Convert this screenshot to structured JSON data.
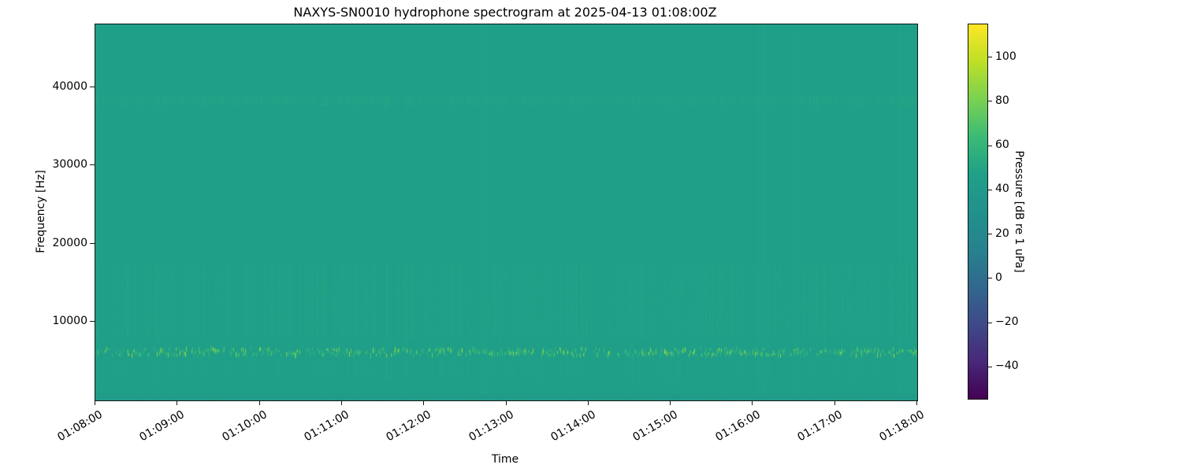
{
  "chart_data": {
    "type": "heatmap",
    "subtype": "spectrogram",
    "title": "NAXYS-SN0010 hydrophone spectrogram at 2025-04-13 01:08:00Z",
    "xlabel": "Time",
    "ylabel": "Frequency [Hz]",
    "x_tick_labels": [
      "01:08:00",
      "01:09:00",
      "01:10:00",
      "01:11:00",
      "01:12:00",
      "01:13:00",
      "01:14:00",
      "01:15:00",
      "01:16:00",
      "01:17:00",
      "01:18:00"
    ],
    "x_range": {
      "start": "01:08:00",
      "end": "01:18:00",
      "duration_minutes": 10
    },
    "y_ticks_hz": [
      10000,
      20000,
      30000,
      40000
    ],
    "y_tick_labels": [
      "10000",
      "20000",
      "30000",
      "40000"
    ],
    "y_range_hz": [
      0,
      48000
    ],
    "grid": false,
    "colorbar": {
      "label": "Pressure [dB re 1 uPa]",
      "ticks": [
        100,
        80,
        60,
        40,
        20,
        0,
        -20,
        -40
      ],
      "tick_labels": [
        "100",
        "80",
        "60",
        "40",
        "20",
        "0",
        "−20",
        "−40"
      ],
      "vmin": -55,
      "vmax": 115,
      "colormap": "viridis",
      "position": "right",
      "stops": [
        [
          0.0,
          "#440154"
        ],
        [
          0.1,
          "#482878"
        ],
        [
          0.2,
          "#3e4a89"
        ],
        [
          0.3,
          "#31688e"
        ],
        [
          0.4,
          "#26828e"
        ],
        [
          0.5,
          "#21918c"
        ],
        [
          0.6,
          "#1fa088"
        ],
        [
          0.7,
          "#3bbb75"
        ],
        [
          0.8,
          "#7ad151"
        ],
        [
          0.9,
          "#bddf26"
        ],
        [
          1.0,
          "#fde725"
        ]
      ]
    },
    "background_level_db": 46,
    "background_color": "#1fa188",
    "features": [
      {
        "name": "broadband-pulse-train",
        "freq_hz": [
          5500,
          6800
        ],
        "character": "dense intermittent bright pulses across full duration",
        "level_db": [
          58,
          92
        ],
        "density": 0.5
      },
      {
        "name": "mid-band-streaks",
        "freq_hz": [
          8000,
          17500
        ],
        "character": "faint vertical streaks",
        "level_db_above_background": [
          1,
          6
        ]
      },
      {
        "name": "low-mid-streaks",
        "freq_hz": [
          2500,
          5200
        ],
        "character": "very faint vertical streaks",
        "level_db_above_background": [
          0,
          2
        ]
      },
      {
        "name": "narrow-band-tone",
        "freq_hz": [
          37600,
          38900
        ],
        "character": "continuous faint lighter horizontal band",
        "level_db_above_background": [
          2,
          4
        ]
      },
      {
        "name": "near-dc-rolloff",
        "freq_hz": [
          0,
          800
        ],
        "character": "darker band along bottom edge",
        "level_db_below_background": 3.5
      }
    ]
  }
}
